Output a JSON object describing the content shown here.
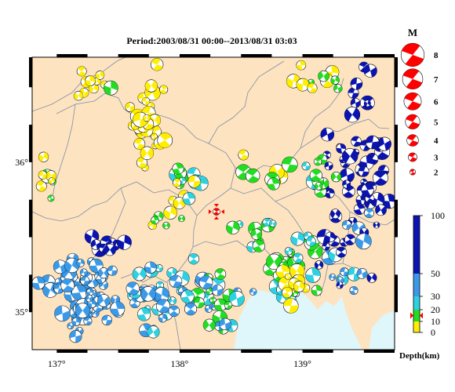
{
  "title": "Period:2003/08/31 00:00--2013/08/31 03:03",
  "map": {
    "lon_range": [
      136.8,
      139.75
    ],
    "lat_range": [
      34.75,
      36.7
    ],
    "x_ticks": [
      {
        "lon": 137,
        "label": "137°"
      },
      {
        "lon": 138,
        "label": "138°"
      },
      {
        "lon": 139,
        "label": "139°"
      }
    ],
    "y_ticks": [
      {
        "lat": 36,
        "label": "36°"
      },
      {
        "lat": 35,
        "label": "35°"
      }
    ],
    "land_color": "#fde3c0",
    "sea_color": "#dff6fb",
    "mainshock": {
      "lon": 138.3,
      "lat": 35.67,
      "color": "#ff0000"
    }
  },
  "magnitude_legend": {
    "header": "M",
    "items": [
      {
        "label": "8",
        "m": 8
      },
      {
        "label": "7",
        "m": 7
      },
      {
        "label": "6",
        "m": 6
      },
      {
        "label": "5",
        "m": 5
      },
      {
        "label": "4",
        "m": 4
      },
      {
        "label": "3",
        "m": 3
      },
      {
        "label": "2",
        "m": 2
      }
    ],
    "color": "#ff0000"
  },
  "depth_scale": {
    "title": "Depth(km)",
    "range": [
      0,
      100
    ],
    "bands": [
      {
        "from": 0,
        "to": 10,
        "color": "#ffee00"
      },
      {
        "from": 10,
        "to": 20,
        "color": "#22dd22"
      },
      {
        "from": 20,
        "to": 30,
        "color": "#2fd0e0"
      },
      {
        "from": 30,
        "to": 50,
        "color": "#3b9ae8"
      },
      {
        "from": 50,
        "to": 100,
        "color": "#0b14b0"
      }
    ],
    "ticks": [
      {
        "value": 0,
        "label": "0"
      },
      {
        "value": 10,
        "label": "10"
      },
      {
        "value": 20,
        "label": "20"
      },
      {
        "value": 30,
        "label": "30"
      },
      {
        "value": 50,
        "label": "50"
      },
      {
        "value": 100,
        "label": "100"
      }
    ],
    "marker_depth": 15
  }
}
